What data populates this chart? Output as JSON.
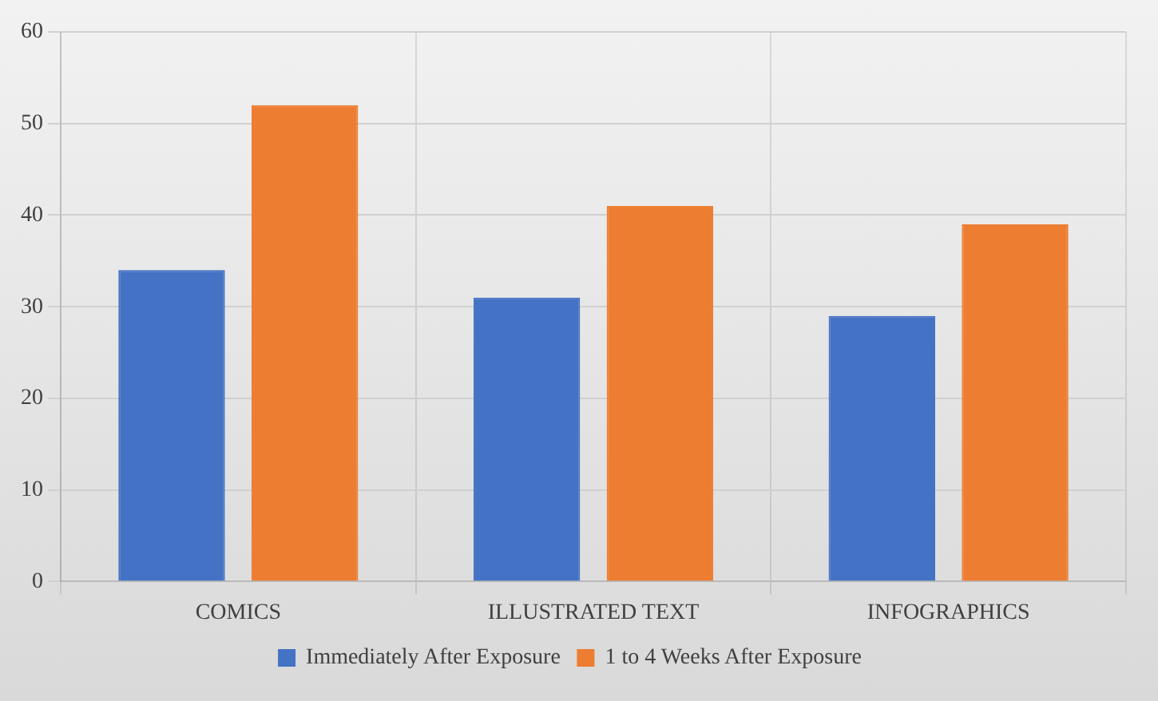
{
  "chart_data": {
    "type": "bar",
    "categories": [
      "COMICS",
      "ILLUSTRATED TEXT",
      "INFOGRAPHICS"
    ],
    "series": [
      {
        "name": "Immediately After Exposure",
        "color": "#4472c4",
        "values": [
          34,
          31,
          29
        ]
      },
      {
        "name": "1 to 4 Weeks After Exposure",
        "color": "#ed7d31",
        "values": [
          52,
          41,
          39
        ]
      }
    ],
    "ylim": [
      0,
      60
    ],
    "yticks": [
      0,
      10,
      20,
      30,
      40,
      50,
      60
    ],
    "grid": true,
    "legend": "bottom"
  }
}
